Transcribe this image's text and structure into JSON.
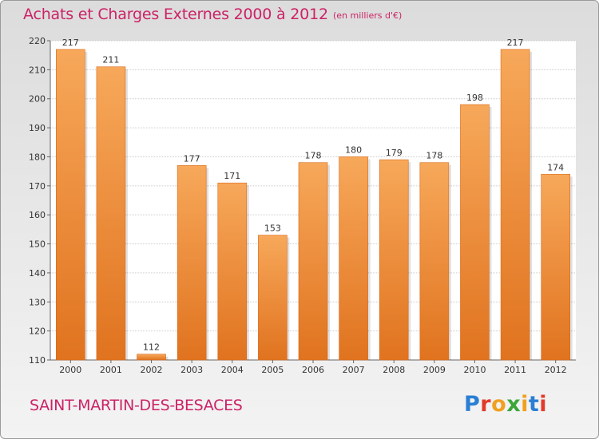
{
  "title": "Achats et Charges Externes 2000 à 2012",
  "unit_note": "(en milliers d'€)",
  "commune": "SAINT-MARTIN-DES-BESACES",
  "logo": {
    "text": "Proxiti",
    "colors": [
      "#2a7fd4",
      "#e23a2a",
      "#f0a020",
      "#3aa63a",
      "#f0a020",
      "#2a7fd4",
      "#e23a2a"
    ]
  },
  "colors": {
    "bar_light": "#f7a85a",
    "bar_dark": "#e0731f",
    "title": "#cc2266"
  },
  "chart_data": {
    "type": "bar",
    "categories": [
      "2000",
      "2001",
      "2002",
      "2003",
      "2004",
      "2005",
      "2006",
      "2007",
      "2008",
      "2009",
      "2010",
      "2011",
      "2012"
    ],
    "values": [
      217,
      211,
      112,
      177,
      171,
      153,
      178,
      180,
      179,
      178,
      198,
      217,
      174
    ],
    "ylim": [
      110,
      220
    ],
    "yticks": [
      110,
      120,
      130,
      140,
      150,
      160,
      170,
      180,
      190,
      200,
      210,
      220
    ],
    "grid": true
  }
}
